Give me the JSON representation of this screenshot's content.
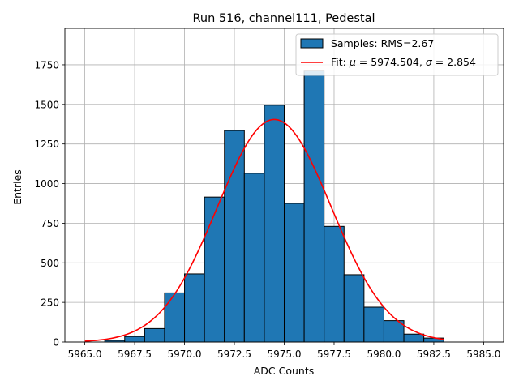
{
  "chart_data": {
    "type": "bar",
    "title": "Run 516, channel111, Pedestal",
    "xlabel": "ADC Counts",
    "ylabel": "Entries",
    "xlim": [
      5964.0,
      5986.0
    ],
    "ylim": [
      0,
      1980
    ],
    "xticks": [
      5965.0,
      5967.5,
      5970.0,
      5972.5,
      5975.0,
      5977.5,
      5980.0,
      5982.5,
      5985.0
    ],
    "yticks": [
      0,
      250,
      500,
      750,
      1000,
      1250,
      1500,
      1750
    ],
    "grid": true,
    "legend_position": "top-right",
    "bin_width": 1,
    "bins": [
      {
        "left": 5966,
        "count": 10
      },
      {
        "left": 5967,
        "count": 35
      },
      {
        "left": 5968,
        "count": 85
      },
      {
        "left": 5969,
        "count": 310
      },
      {
        "left": 5970,
        "count": 430
      },
      {
        "left": 5971,
        "count": 915
      },
      {
        "left": 5972,
        "count": 1335
      },
      {
        "left": 5973,
        "count": 1065
      },
      {
        "left": 5974,
        "count": 1495
      },
      {
        "left": 5975,
        "count": 875
      },
      {
        "left": 5976,
        "count": 1715
      },
      {
        "left": 5977,
        "count": 730
      },
      {
        "left": 5978,
        "count": 425
      },
      {
        "left": 5979,
        "count": 220
      },
      {
        "left": 5980,
        "count": 135
      },
      {
        "left": 5981,
        "count": 50
      },
      {
        "left": 5982,
        "count": 25
      }
    ],
    "fit": {
      "mu": 5974.504,
      "sigma": 2.854,
      "amplitude": 1405,
      "x_range": [
        5965.0,
        5983.0
      ]
    },
    "series": [
      {
        "name_prefix": "Samples: RMS=",
        "name_value": "2.67",
        "color": "#1f77b4",
        "edgecolor": "#000000"
      },
      {
        "name_prefix": "Fit: ",
        "mu_symbol": "μ",
        "mu_value": " = 5974.504, ",
        "sigma_symbol": "σ",
        "sigma_value": " = 2.854",
        "color": "#ff0000"
      }
    ]
  }
}
